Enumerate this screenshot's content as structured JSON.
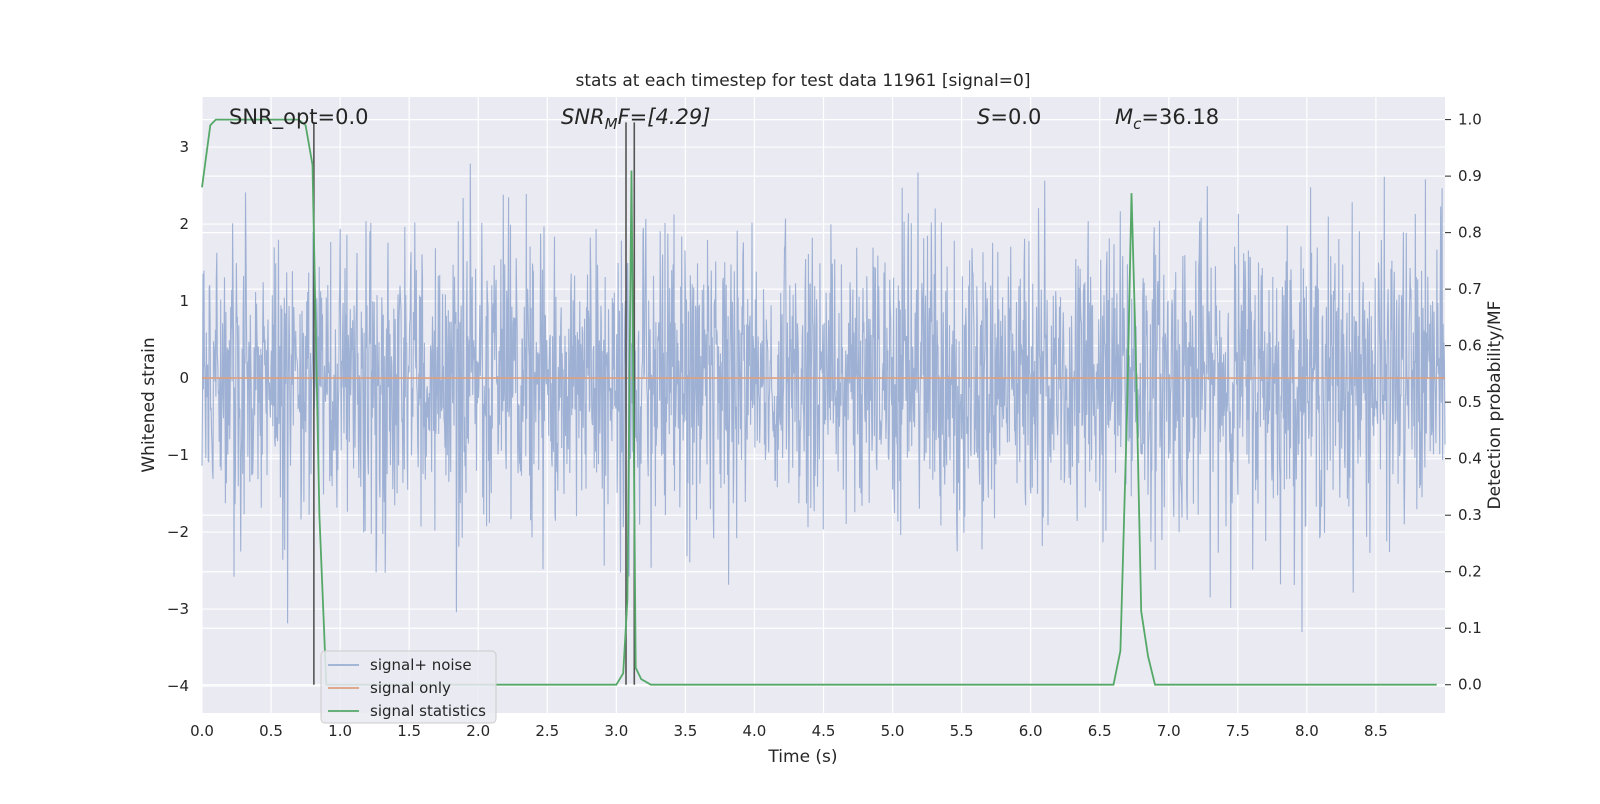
{
  "chart_data": {
    "type": "line",
    "title": "stats at each timestep for test data 11961 [signal=0]",
    "xlabel": "Time (s)",
    "ylabel_left": "Whitened strain",
    "ylabel_right": "Detection probability/MF",
    "xlim": [
      0,
      9.0
    ],
    "ylim_left": [
      -4.35,
      3.65
    ],
    "ylim_right": [
      -0.05,
      1.04
    ],
    "x_ticks": [
      "0.0",
      "0.5",
      "1.0",
      "1.5",
      "2.0",
      "2.5",
      "3.0",
      "3.5",
      "4.0",
      "4.5",
      "5.0",
      "5.5",
      "6.0",
      "6.5",
      "7.0",
      "7.5",
      "8.0",
      "8.5"
    ],
    "y_ticks_left": [
      {
        "value": 3,
        "label": "3"
      },
      {
        "value": 2,
        "label": "2"
      },
      {
        "value": 1,
        "label": "1"
      },
      {
        "value": 0,
        "label": "0"
      },
      {
        "value": -1,
        "label": "−1"
      },
      {
        "value": -2,
        "label": "−2"
      },
      {
        "value": -3,
        "label": "−3"
      },
      {
        "value": -4,
        "label": "−4"
      }
    ],
    "y_ticks_right": [
      "0.0",
      "0.1",
      "0.2",
      "0.3",
      "0.4",
      "0.5",
      "0.6",
      "0.7",
      "0.8",
      "0.9",
      "1.0"
    ],
    "grid": true,
    "legend_placement": "lower-left",
    "annotations": {
      "snr_opt": "SNR_opt=0.0",
      "snr_mf_main": "SNR",
      "snr_mf_sub": "M",
      "snr_mf_rest": "F=[4.29]",
      "s_main": "S",
      "s_rest": "=0.0",
      "mc_main": "M",
      "mc_sub": "c",
      "mc_rest": "=36.18"
    },
    "vertical_markers": [
      0.81,
      3.07,
      3.13
    ],
    "series": [
      {
        "name": "signal+ noise",
        "axis": "left",
        "color": "#9aaed2",
        "description_values": "noise samples, roughly within [-3.3, 3.3]"
      },
      {
        "name": "signal only",
        "axis": "left",
        "color": "#dd9f7e",
        "x": [
          0,
          9.0
        ],
        "y": [
          0,
          0
        ]
      },
      {
        "name": "signal statistics",
        "axis": "right",
        "color": "#55a868",
        "x": [
          0.0,
          0.06,
          0.1,
          0.15,
          0.2,
          0.3,
          0.4,
          0.5,
          0.6,
          0.65,
          0.7,
          0.75,
          0.8,
          0.85,
          0.9,
          1.0,
          2.0,
          3.0,
          3.05,
          3.08,
          3.11,
          3.14,
          3.18,
          3.25,
          3.3,
          4.0,
          5.0,
          6.0,
          6.6,
          6.65,
          6.7,
          6.73,
          6.76,
          6.8,
          6.85,
          6.9,
          7.0,
          8.0,
          8.94
        ],
        "y": [
          0.88,
          0.99,
          1.0,
          1.0,
          1.0,
          1.0,
          1.0,
          1.0,
          1.0,
          1.0,
          1.0,
          0.99,
          0.92,
          0.3,
          0.0,
          0.0,
          0.0,
          0.0,
          0.02,
          0.15,
          0.91,
          0.03,
          0.01,
          0.0,
          0.0,
          0.0,
          0.0,
          0.0,
          0.0,
          0.06,
          0.5,
          0.87,
          0.6,
          0.13,
          0.05,
          0.0,
          0.0,
          0.0,
          0.0
        ]
      }
    ]
  }
}
